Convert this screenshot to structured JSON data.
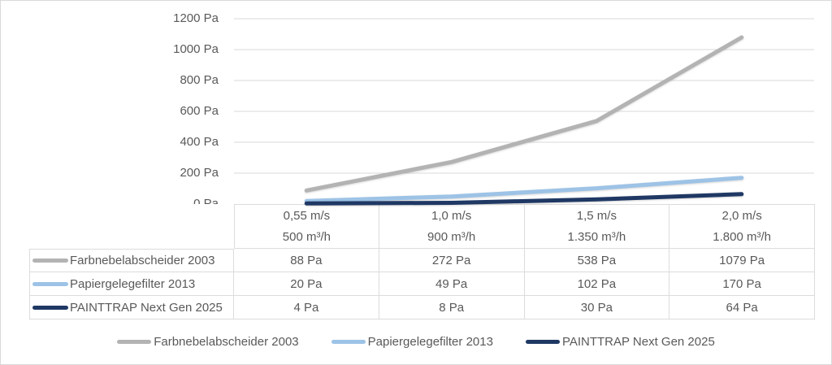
{
  "chart_data": {
    "type": "line",
    "title": "",
    "xlabel": "",
    "ylabel": "",
    "ylim": [
      0,
      1200
    ],
    "y_step": 200,
    "grid": true,
    "legend_position": "bottom",
    "categories": [
      "0,55 m/s / 500 m³/h",
      "1,0 m/s / 900 m³/h",
      "1,5 m/s / 1.350 m³/h",
      "2,0 m/s / 1.800 m³/h"
    ],
    "series": [
      {
        "name": "Farbnebelabscheider 2003",
        "color": "#b3b3b3",
        "values": [
          88,
          272,
          538,
          1079
        ]
      },
      {
        "name": "Papiergelegefilter 2013",
        "color": "#9dc3e6",
        "values": [
          20,
          49,
          102,
          170
        ]
      },
      {
        "name": "PAINTTRAP Next Gen 2025",
        "color": "#1f3864",
        "values": [
          4,
          8,
          30,
          64
        ]
      }
    ],
    "y_axis": {
      "unit": "Pa",
      "tick_labels": [
        "1200 Pa",
        "1000 Pa",
        "800 Pa",
        "600 Pa",
        "400 Pa",
        "200 Pa",
        "0 Pa"
      ]
    }
  },
  "table": {
    "column_headers": [
      {
        "speed": "0,55 m/s",
        "flow": "500 m³/h"
      },
      {
        "speed": "1,0 m/s",
        "flow": "900 m³/h"
      },
      {
        "speed": "1,5 m/s",
        "flow": "1.350 m³/h"
      },
      {
        "speed": "2,0 m/s",
        "flow": "1.800 m³/h"
      }
    ],
    "rows": [
      {
        "label": "Farbnebelabscheider 2003",
        "key_color": "#b3b3b3",
        "values": [
          "88 Pa",
          "272 Pa",
          "538 Pa",
          "1079 Pa"
        ]
      },
      {
        "label": "Papiergelegefilter 2013",
        "key_color": "#9dc3e6",
        "values": [
          "20 Pa",
          "49 Pa",
          "102 Pa",
          "170 Pa"
        ]
      },
      {
        "label": "PAINTTRAP Next Gen 2025",
        "key_color": "#1f3864",
        "values": [
          "4 Pa",
          "8 Pa",
          "30 Pa",
          "64 Pa"
        ]
      }
    ]
  },
  "legend": {
    "items": [
      {
        "label": "Farbnebelabscheider 2003",
        "color": "#b3b3b3"
      },
      {
        "label": "Papiergelegefilter 2013",
        "color": "#9dc3e6"
      },
      {
        "label": "PAINTTRAP Next Gen 2025",
        "color": "#1f3864"
      }
    ]
  },
  "colors": {
    "gridline": "#d9d9d9",
    "table_border": "#dcdcdc",
    "text": "#595959"
  }
}
